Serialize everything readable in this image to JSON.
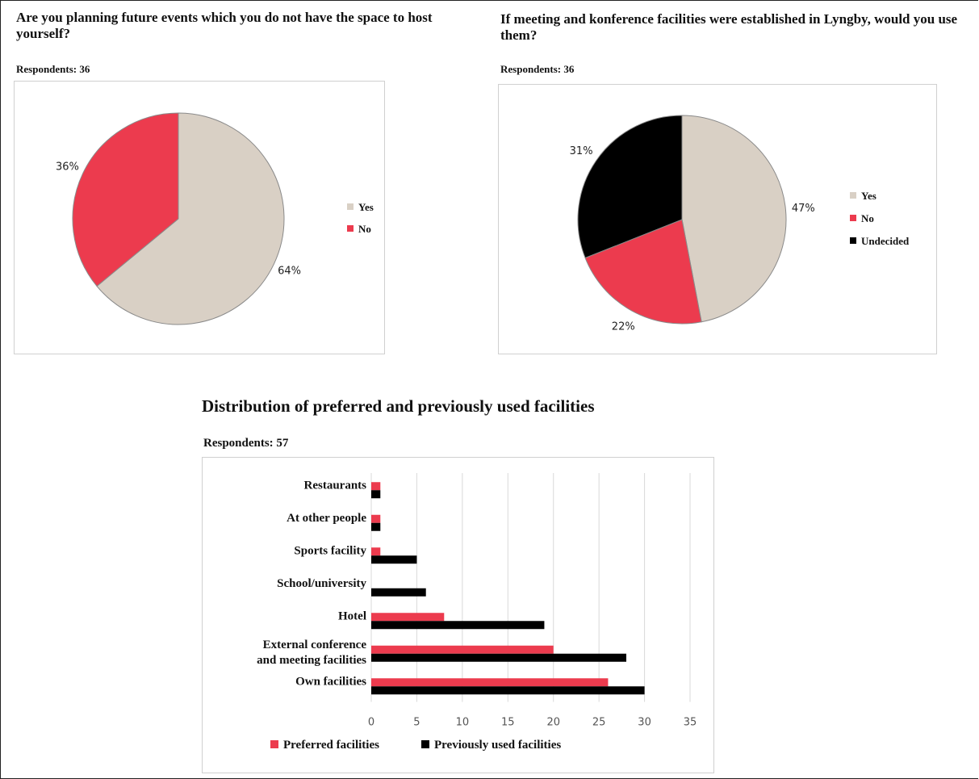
{
  "colors": {
    "yes": "#d9d0c5",
    "no": "#ec3b4e",
    "undecided": "#000000",
    "preferred": "#ec3b4e",
    "previous": "#000000",
    "grid": "#d9d9d9"
  },
  "chart_data": [
    {
      "type": "pie",
      "title": "Are you planning future events which you do not have the space to host yourself?",
      "subtitle": "Respondents: 36",
      "labels": [
        "Yes",
        "No"
      ],
      "values": [
        64,
        36
      ],
      "value_labels": [
        "64%",
        "36%"
      ],
      "legend": "right"
    },
    {
      "type": "pie",
      "title": "If meeting and konference facilities were established in Lyngby, would you use them?",
      "subtitle": "Respondents: 36",
      "labels": [
        "Yes",
        "No",
        "Undecided"
      ],
      "values": [
        47,
        22,
        31
      ],
      "value_labels": [
        "47%",
        "22%",
        "31%"
      ],
      "legend": "right"
    },
    {
      "type": "bar",
      "orientation": "horizontal",
      "title": "Distribution of preferred and previously used facilities",
      "subtitle": "Respondents: 57",
      "categories": [
        "Restaurants",
        "At other people",
        "Sports facility",
        "School/university",
        "Hotel",
        "External conference and meeting facilities",
        "Own facilities"
      ],
      "series": [
        {
          "name": "Preferred facilities",
          "values": [
            1,
            1,
            1,
            0,
            8,
            20,
            26
          ]
        },
        {
          "name": "Previously used facilities",
          "values": [
            1,
            1,
            5,
            6,
            19,
            28,
            30
          ]
        }
      ],
      "xlim": [
        0,
        35
      ],
      "xticks": [
        "0",
        "5",
        "10",
        "15",
        "20",
        "25",
        "30",
        "35"
      ],
      "grid": true,
      "legend": "bottom"
    }
  ]
}
